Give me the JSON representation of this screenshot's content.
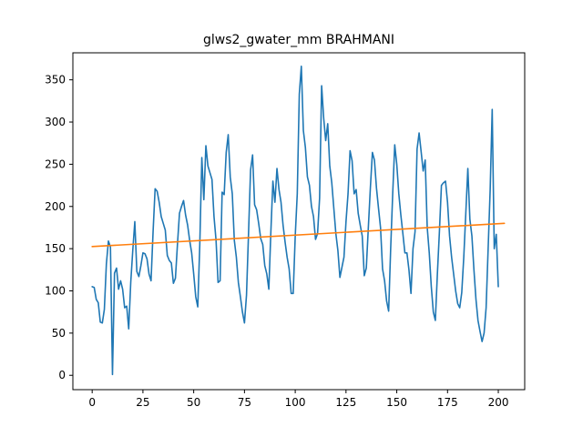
{
  "chart_data": {
    "type": "line",
    "title": "glws2_gwater_mm BRAHMANI",
    "xlabel": "",
    "ylabel": "",
    "xlim": [
      -9.5,
      213
    ],
    "ylim": [
      -17,
      382
    ],
    "xticks": [
      0,
      25,
      50,
      75,
      100,
      125,
      150,
      175,
      200
    ],
    "yticks": [
      0,
      50,
      100,
      150,
      200,
      250,
      300,
      350
    ],
    "grid": false,
    "colors": {
      "series": "#1f77b4",
      "trend": "#ff7f0e"
    },
    "series": [
      {
        "points": [
          [
            0,
            105
          ],
          [
            1,
            104
          ],
          [
            2,
            90
          ],
          [
            3,
            86
          ],
          [
            4,
            63
          ],
          [
            5,
            62
          ],
          [
            6,
            78
          ],
          [
            7,
            132
          ],
          [
            8,
            159
          ],
          [
            9,
            152
          ],
          [
            10,
            1
          ],
          [
            11,
            121
          ],
          [
            12,
            127
          ],
          [
            13,
            102
          ],
          [
            14,
            112
          ],
          [
            15,
            102
          ],
          [
            16,
            80
          ],
          [
            17,
            82
          ],
          [
            18,
            55
          ],
          [
            19,
            110
          ],
          [
            20,
            148
          ],
          [
            21,
            182
          ],
          [
            22,
            123
          ],
          [
            23,
            117
          ],
          [
            24,
            130
          ],
          [
            25,
            145
          ],
          [
            26,
            144
          ],
          [
            27,
            138
          ],
          [
            28,
            120
          ],
          [
            29,
            112
          ],
          [
            30,
            170
          ],
          [
            31,
            221
          ],
          [
            32,
            218
          ],
          [
            33,
            205
          ],
          [
            34,
            188
          ],
          [
            35,
            180
          ],
          [
            36,
            172
          ],
          [
            37,
            142
          ],
          [
            38,
            136
          ],
          [
            39,
            133
          ],
          [
            40,
            109
          ],
          [
            41,
            115
          ],
          [
            42,
            155
          ],
          [
            43,
            192
          ],
          [
            44,
            200
          ],
          [
            45,
            207
          ],
          [
            46,
            190
          ],
          [
            47,
            178
          ],
          [
            48,
            160
          ],
          [
            49,
            145
          ],
          [
            50,
            120
          ],
          [
            51,
            93
          ],
          [
            52,
            81
          ],
          [
            53,
            155
          ],
          [
            54,
            258
          ],
          [
            55,
            208
          ],
          [
            56,
            272
          ],
          [
            57,
            248
          ],
          [
            58,
            240
          ],
          [
            59,
            232
          ],
          [
            60,
            188
          ],
          [
            61,
            160
          ],
          [
            62,
            110
          ],
          [
            63,
            112
          ],
          [
            64,
            217
          ],
          [
            65,
            214
          ],
          [
            66,
            264
          ],
          [
            67,
            285
          ],
          [
            68,
            235
          ],
          [
            69,
            215
          ],
          [
            70,
            160
          ],
          [
            71,
            140
          ],
          [
            72,
            110
          ],
          [
            73,
            93
          ],
          [
            74,
            75
          ],
          [
            75,
            62
          ],
          [
            76,
            95
          ],
          [
            77,
            168
          ],
          [
            78,
            243
          ],
          [
            79,
            261
          ],
          [
            80,
            202
          ],
          [
            81,
            196
          ],
          [
            82,
            180
          ],
          [
            83,
            162
          ],
          [
            84,
            155
          ],
          [
            85,
            130
          ],
          [
            86,
            120
          ],
          [
            87,
            102
          ],
          [
            88,
            170
          ],
          [
            89,
            230
          ],
          [
            90,
            205
          ],
          [
            91,
            245
          ],
          [
            92,
            220
          ],
          [
            93,
            205
          ],
          [
            94,
            178
          ],
          [
            95,
            158
          ],
          [
            96,
            140
          ],
          [
            97,
            126
          ],
          [
            98,
            97
          ],
          [
            99,
            97
          ],
          [
            100,
            165
          ],
          [
            101,
            215
          ],
          [
            102,
            333
          ],
          [
            103,
            366
          ],
          [
            104,
            290
          ],
          [
            105,
            270
          ],
          [
            106,
            235
          ],
          [
            107,
            225
          ],
          [
            108,
            200
          ],
          [
            109,
            188
          ],
          [
            110,
            161
          ],
          [
            111,
            168
          ],
          [
            112,
            210
          ],
          [
            113,
            343
          ],
          [
            114,
            305
          ],
          [
            115,
            278
          ],
          [
            116,
            298
          ],
          [
            117,
            248
          ],
          [
            118,
            228
          ],
          [
            119,
            198
          ],
          [
            120,
            168
          ],
          [
            121,
            148
          ],
          [
            122,
            116
          ],
          [
            123,
            128
          ],
          [
            124,
            140
          ],
          [
            125,
            182
          ],
          [
            126,
            215
          ],
          [
            127,
            266
          ],
          [
            128,
            254
          ],
          [
            129,
            215
          ],
          [
            130,
            220
          ],
          [
            131,
            192
          ],
          [
            132,
            178
          ],
          [
            133,
            165
          ],
          [
            134,
            118
          ],
          [
            135,
            127
          ],
          [
            136,
            175
          ],
          [
            137,
            222
          ],
          [
            138,
            264
          ],
          [
            139,
            255
          ],
          [
            140,
            222
          ],
          [
            141,
            198
          ],
          [
            142,
            175
          ],
          [
            143,
            126
          ],
          [
            144,
            112
          ],
          [
            145,
            88
          ],
          [
            146,
            76
          ],
          [
            147,
            150
          ],
          [
            148,
            215
          ],
          [
            149,
            273
          ],
          [
            150,
            250
          ],
          [
            151,
            215
          ],
          [
            152,
            190
          ],
          [
            153,
            168
          ],
          [
            154,
            145
          ],
          [
            155,
            145
          ],
          [
            156,
            125
          ],
          [
            157,
            97
          ],
          [
            158,
            150
          ],
          [
            159,
            170
          ],
          [
            160,
            268
          ],
          [
            161,
            287
          ],
          [
            162,
            265
          ],
          [
            163,
            242
          ],
          [
            164,
            255
          ],
          [
            165,
            175
          ],
          [
            166,
            145
          ],
          [
            167,
            105
          ],
          [
            168,
            75
          ],
          [
            169,
            65
          ],
          [
            170,
            120
          ],
          [
            171,
            170
          ],
          [
            172,
            225
          ],
          [
            173,
            228
          ],
          [
            174,
            230
          ],
          [
            175,
            205
          ],
          [
            176,
            165
          ],
          [
            177,
            140
          ],
          [
            178,
            120
          ],
          [
            179,
            100
          ],
          [
            180,
            85
          ],
          [
            181,
            80
          ],
          [
            182,
            98
          ],
          [
            183,
            140
          ],
          [
            184,
            192
          ],
          [
            185,
            245
          ],
          [
            186,
            185
          ],
          [
            187,
            165
          ],
          [
            188,
            125
          ],
          [
            189,
            90
          ],
          [
            190,
            65
          ],
          [
            191,
            52
          ],
          [
            192,
            40
          ],
          [
            193,
            50
          ],
          [
            194,
            80
          ],
          [
            195,
            150
          ],
          [
            196,
            220
          ],
          [
            197,
            315
          ],
          [
            198,
            150
          ],
          [
            199,
            167
          ],
          [
            200,
            105
          ]
        ]
      },
      {
        "points": [
          [
            0,
            152.5
          ],
          [
            203,
            180
          ]
        ]
      }
    ]
  }
}
